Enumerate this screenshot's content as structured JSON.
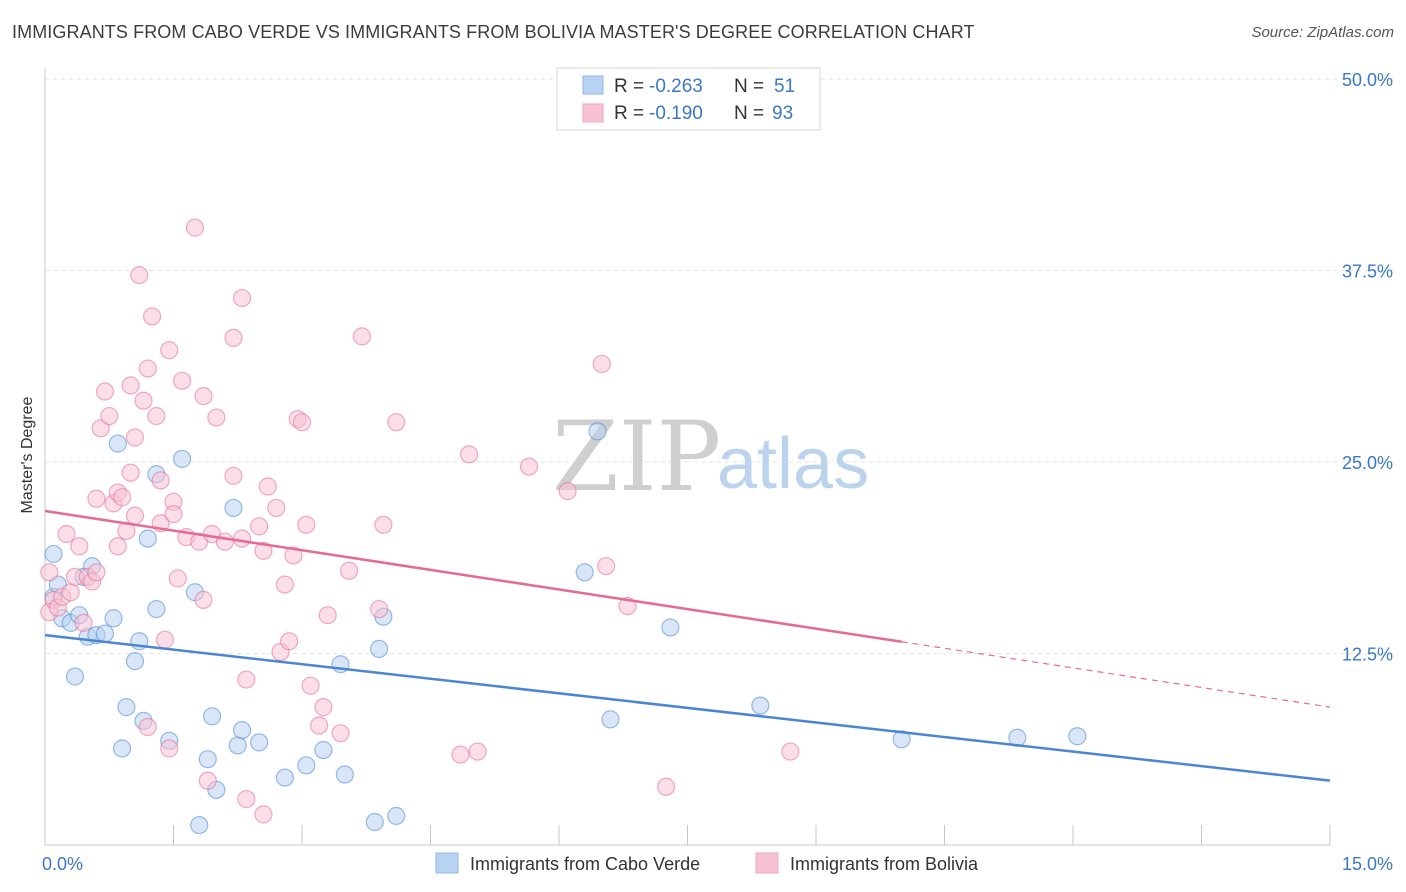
{
  "header": {
    "title": "IMMIGRANTS FROM CABO VERDE VS IMMIGRANTS FROM BOLIVIA MASTER'S DEGREE CORRELATION CHART",
    "source": "Source: ZipAtlas.com"
  },
  "watermark": {
    "zip": "ZIP",
    "atlas": "atlas"
  },
  "legend": {
    "rows": [
      {
        "r_label": "R =",
        "r_value": "-0.263",
        "n_label": "N =",
        "n_value": "51",
        "color": "#8fb8e8"
      },
      {
        "r_label": "R =",
        "r_value": "-0.190",
        "n_label": "N =",
        "n_value": "93",
        "color": "#f2a7bf"
      }
    ]
  },
  "bottom_legend": [
    {
      "label": "Immigrants from Cabo Verde",
      "color": "#8fb8e8"
    },
    {
      "label": "Immigrants from Bolivia",
      "color": "#f2a7bf"
    }
  ],
  "chart_data": {
    "type": "scatter",
    "title": "IMMIGRANTS FROM CABO VERDE VS IMMIGRANTS FROM BOLIVIA MASTER'S DEGREE CORRELATION CHART",
    "xlabel": "",
    "ylabel": "Master's Degree",
    "xlim": [
      0,
      15
    ],
    "ylim": [
      0,
      50
    ],
    "x_tick_labels": [
      "0.0%",
      "15.0%"
    ],
    "y_ticks": [
      12.5,
      25.0,
      37.5,
      50.0
    ],
    "y_tick_labels": [
      "12.5%",
      "25.0%",
      "37.5%",
      "50.0%"
    ],
    "grid": true,
    "series": [
      {
        "name": "Immigrants from Cabo Verde",
        "color": "#4a86d4",
        "fill": "#b8d2f2",
        "trend": {
          "x0": 0,
          "y0": 13.7,
          "x1": 15,
          "y1": 4.2,
          "dashed_from": null
        },
        "points": [
          [
            0.1,
            19.0
          ],
          [
            0.1,
            16.2
          ],
          [
            0.15,
            17.0
          ],
          [
            0.2,
            14.8
          ],
          [
            0.3,
            14.5
          ],
          [
            0.35,
            11.0
          ],
          [
            0.4,
            15.0
          ],
          [
            0.45,
            17.5
          ],
          [
            0.5,
            13.6
          ],
          [
            0.55,
            18.2
          ],
          [
            0.6,
            13.7
          ],
          [
            0.7,
            13.8
          ],
          [
            0.8,
            14.8
          ],
          [
            0.85,
            26.2
          ],
          [
            0.9,
            6.3
          ],
          [
            0.95,
            9.0
          ],
          [
            1.05,
            12.0
          ],
          [
            1.1,
            13.3
          ],
          [
            1.15,
            8.1
          ],
          [
            1.2,
            20.0
          ],
          [
            1.3,
            15.4
          ],
          [
            1.3,
            24.2
          ],
          [
            1.45,
            6.8
          ],
          [
            1.6,
            25.2
          ],
          [
            1.75,
            16.5
          ],
          [
            1.8,
            1.3
          ],
          [
            1.9,
            5.6
          ],
          [
            1.95,
            8.4
          ],
          [
            2.0,
            3.6
          ],
          [
            2.2,
            22.0
          ],
          [
            2.25,
            6.5
          ],
          [
            2.3,
            7.5
          ],
          [
            2.5,
            6.7
          ],
          [
            2.8,
            4.4
          ],
          [
            3.05,
            5.2
          ],
          [
            3.25,
            6.2
          ],
          [
            3.45,
            11.8
          ],
          [
            3.5,
            4.6
          ],
          [
            3.85,
            1.5
          ],
          [
            3.9,
            12.8
          ],
          [
            3.95,
            14.9
          ],
          [
            4.1,
            1.9
          ],
          [
            6.3,
            17.8
          ],
          [
            6.45,
            27.0
          ],
          [
            6.6,
            8.2
          ],
          [
            7.3,
            14.2
          ],
          [
            8.35,
            9.1
          ],
          [
            10.0,
            6.9
          ],
          [
            11.35,
            7.0
          ],
          [
            12.05,
            7.1
          ]
        ]
      },
      {
        "name": "Immigrants from Bolivia",
        "color": "#e46b94",
        "fill": "#f7c2d3",
        "trend": {
          "x0": 0,
          "y0": 21.8,
          "x1": 15,
          "y1": 9.0,
          "dashed_from": 10.0
        },
        "points": [
          [
            0.05,
            17.8
          ],
          [
            0.05,
            15.2
          ],
          [
            0.1,
            16.0
          ],
          [
            0.15,
            15.5
          ],
          [
            0.2,
            16.2
          ],
          [
            0.25,
            20.3
          ],
          [
            0.3,
            16.5
          ],
          [
            0.35,
            17.5
          ],
          [
            0.4,
            19.5
          ],
          [
            0.45,
            14.5
          ],
          [
            0.5,
            17.5
          ],
          [
            0.55,
            17.2
          ],
          [
            0.6,
            17.8
          ],
          [
            0.6,
            22.6
          ],
          [
            0.65,
            27.2
          ],
          [
            0.7,
            29.6
          ],
          [
            0.75,
            28.0
          ],
          [
            0.8,
            22.3
          ],
          [
            0.85,
            19.5
          ],
          [
            0.85,
            23.0
          ],
          [
            0.9,
            22.7
          ],
          [
            0.95,
            20.5
          ],
          [
            1.0,
            30.0
          ],
          [
            1.0,
            24.3
          ],
          [
            1.05,
            26.6
          ],
          [
            1.05,
            21.5
          ],
          [
            1.1,
            37.2
          ],
          [
            1.15,
            29.0
          ],
          [
            1.2,
            31.1
          ],
          [
            1.2,
            7.7
          ],
          [
            1.25,
            34.5
          ],
          [
            1.3,
            28.0
          ],
          [
            1.35,
            21.0
          ],
          [
            1.35,
            23.8
          ],
          [
            1.4,
            13.4
          ],
          [
            1.45,
            32.3
          ],
          [
            1.45,
            6.3
          ],
          [
            1.5,
            22.4
          ],
          [
            1.5,
            21.6
          ],
          [
            1.55,
            17.4
          ],
          [
            1.6,
            30.3
          ],
          [
            1.65,
            20.1
          ],
          [
            1.75,
            40.3
          ],
          [
            1.8,
            19.8
          ],
          [
            1.85,
            29.3
          ],
          [
            1.85,
            16.0
          ],
          [
            1.9,
            4.2
          ],
          [
            1.95,
            20.3
          ],
          [
            2.0,
            27.9
          ],
          [
            2.1,
            19.8
          ],
          [
            2.2,
            33.1
          ],
          [
            2.2,
            24.1
          ],
          [
            2.3,
            35.7
          ],
          [
            2.3,
            20.0
          ],
          [
            2.35,
            3.0
          ],
          [
            2.35,
            10.8
          ],
          [
            2.5,
            20.8
          ],
          [
            2.55,
            19.2
          ],
          [
            2.55,
            2.0
          ],
          [
            2.6,
            23.4
          ],
          [
            2.7,
            22.0
          ],
          [
            2.75,
            12.6
          ],
          [
            2.8,
            17.0
          ],
          [
            2.85,
            13.3
          ],
          [
            2.9,
            18.9
          ],
          [
            2.95,
            27.8
          ],
          [
            3.0,
            27.6
          ],
          [
            3.05,
            20.9
          ],
          [
            3.1,
            10.4
          ],
          [
            3.2,
            7.8
          ],
          [
            3.25,
            9.0
          ],
          [
            3.3,
            15.0
          ],
          [
            3.45,
            7.3
          ],
          [
            3.55,
            17.9
          ],
          [
            3.7,
            33.2
          ],
          [
            3.9,
            15.4
          ],
          [
            3.95,
            20.9
          ],
          [
            4.1,
            27.6
          ],
          [
            4.85,
            5.9
          ],
          [
            4.95,
            25.5
          ],
          [
            5.05,
            6.1
          ],
          [
            5.65,
            24.7
          ],
          [
            6.1,
            23.1
          ],
          [
            6.5,
            31.4
          ],
          [
            6.55,
            18.2
          ],
          [
            6.8,
            15.6
          ],
          [
            7.25,
            3.8
          ],
          [
            8.7,
            6.1
          ]
        ]
      }
    ]
  }
}
